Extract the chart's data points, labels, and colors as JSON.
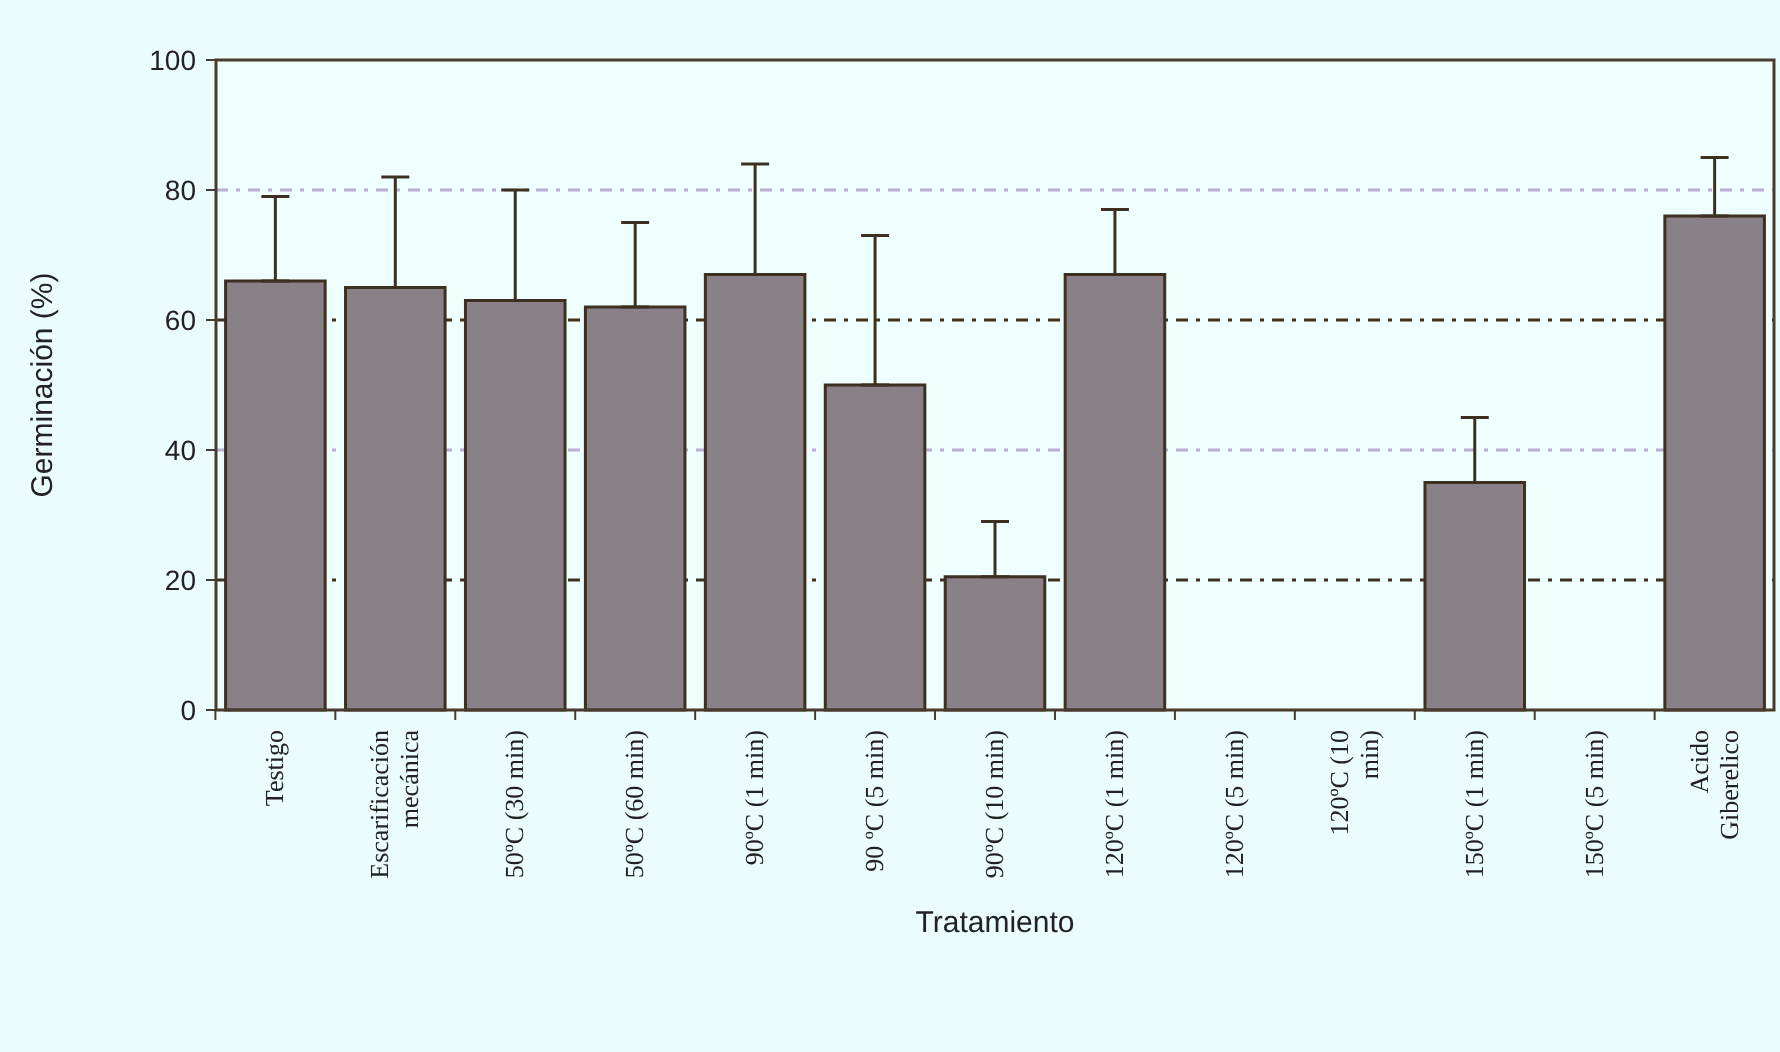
{
  "chart_data": {
    "type": "bar",
    "xlabel": "Tratamiento",
    "ylabel": "Germinación (%)",
    "categories": [
      "Testigo",
      "Escarificación mecánica",
      "50ºC (30 min)",
      "50ºC (60 min)",
      "90ºC (1 min)",
      "90 ºC (5 min)",
      "90ºC (10 min)",
      "120ºC (1 min)",
      "120ºC (5 min)",
      "120ºC (10 min)",
      "150ºC (1 min)",
      "150ºC (5 min)",
      "Acido Giberelico"
    ],
    "values": [
      66,
      65,
      63,
      62,
      67,
      50,
      20.5,
      67,
      0,
      0,
      35,
      0,
      76
    ],
    "errors": [
      [
        66,
        79
      ],
      [
        65,
        82
      ],
      [
        63,
        80
      ],
      [
        62,
        75
      ],
      [
        67,
        84
      ],
      [
        50,
        73
      ],
      [
        20.5,
        29
      ],
      [
        67,
        77
      ],
      null,
      null,
      [
        35,
        45
      ],
      null,
      [
        76,
        85
      ]
    ],
    "color": "#8a8088",
    "ylim": [
      0,
      100
    ],
    "yticks": [
      0,
      20,
      40,
      60,
      80,
      100
    ],
    "grid": "y"
  }
}
